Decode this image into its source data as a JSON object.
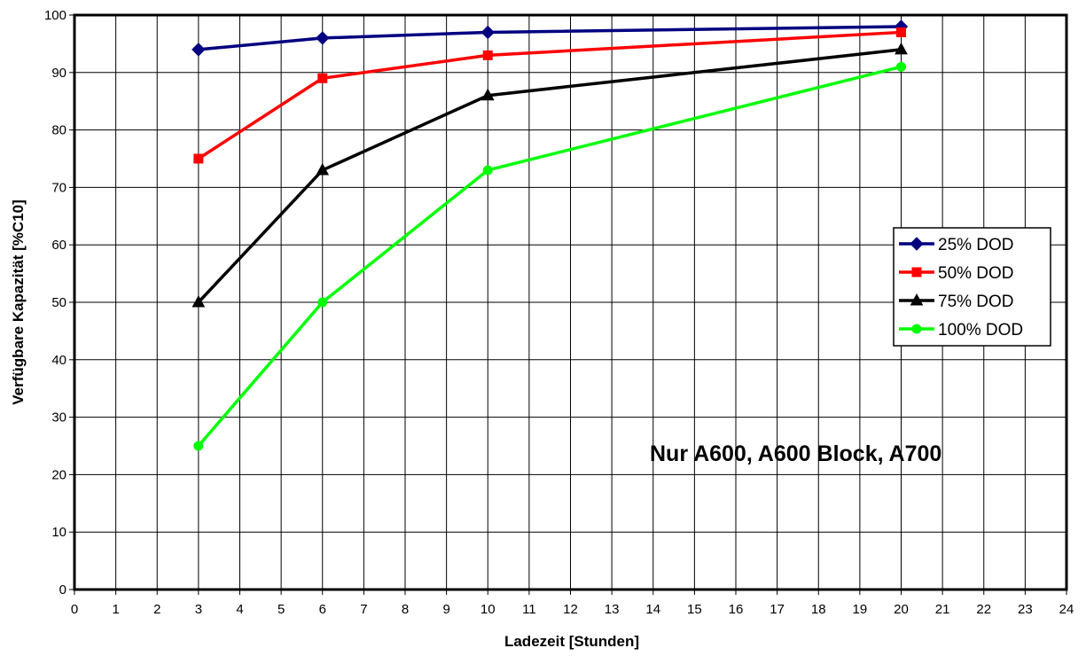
{
  "chart_data": {
    "type": "line",
    "title": "",
    "xlabel": "Ladezeit [Stunden]",
    "ylabel": "Verfügbare Kapazität [%C10]",
    "xlim": [
      0,
      24
    ],
    "ylim": [
      0,
      100
    ],
    "xticks": [
      0,
      1,
      2,
      3,
      4,
      5,
      6,
      7,
      8,
      9,
      10,
      11,
      12,
      13,
      14,
      15,
      16,
      17,
      18,
      19,
      20,
      21,
      22,
      23,
      24
    ],
    "yticks": [
      0,
      10,
      20,
      30,
      40,
      50,
      60,
      70,
      80,
      90,
      100
    ],
    "grid": true,
    "legend_position": "right",
    "annotation": "Nur A600, A600 Block, A700",
    "x": [
      3,
      6,
      10,
      20
    ],
    "series": [
      {
        "name": "25% DOD",
        "color": "#000080",
        "marker": "diamond",
        "values": [
          94,
          96,
          97,
          98
        ]
      },
      {
        "name": "50% DOD",
        "color": "#ff0000",
        "marker": "square",
        "values": [
          75,
          89,
          93,
          97
        ]
      },
      {
        "name": "75% DOD",
        "color": "#000000",
        "marker": "triangle",
        "values": [
          50,
          73,
          86,
          94
        ]
      },
      {
        "name": "100% DOD",
        "color": "#00ff00",
        "marker": "circle",
        "values": [
          25,
          50,
          73,
          91
        ]
      }
    ]
  }
}
